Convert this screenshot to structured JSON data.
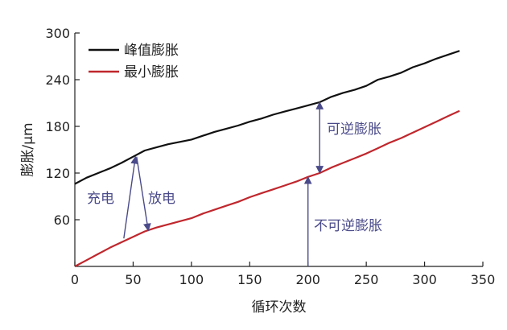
{
  "chart_data": {
    "type": "line",
    "xlabel": "循环次数",
    "ylabel": "膨胀/μm",
    "xlim": [
      0,
      350
    ],
    "ylim": [
      0,
      300
    ],
    "xticks": [
      0,
      50,
      100,
      150,
      200,
      250,
      300,
      350
    ],
    "yticks": [
      60,
      120,
      180,
      240,
      300
    ],
    "grid": false,
    "legend_position": "top-left",
    "series": [
      {
        "name": "峰值膨胀",
        "color": "#111111",
        "x": [
          0,
          10,
          20,
          30,
          40,
          50,
          60,
          70,
          80,
          90,
          100,
          110,
          120,
          130,
          140,
          150,
          160,
          170,
          180,
          190,
          200,
          210,
          220,
          230,
          240,
          250,
          260,
          270,
          280,
          290,
          300,
          310,
          320,
          330
        ],
        "y": [
          106,
          114,
          120,
          126,
          133,
          141,
          149,
          153,
          157,
          160,
          163,
          168,
          173,
          177,
          181,
          186,
          190,
          195,
          199,
          203,
          207,
          211,
          218,
          223,
          227,
          232,
          240,
          244,
          249,
          256,
          261,
          267,
          272,
          277
        ]
      },
      {
        "name": "最小膨胀",
        "color": "#c0272d",
        "x": [
          0,
          10,
          20,
          30,
          40,
          50,
          60,
          70,
          80,
          90,
          100,
          110,
          120,
          130,
          140,
          150,
          160,
          170,
          180,
          190,
          200,
          210,
          220,
          230,
          240,
          250,
          260,
          270,
          280,
          290,
          300,
          310,
          320,
          330
        ],
        "y": [
          0,
          8,
          16,
          24,
          31,
          38,
          45,
          50,
          54,
          58,
          62,
          68,
          73,
          78,
          83,
          89,
          94,
          99,
          104,
          109,
          115,
          120,
          127,
          133,
          139,
          145,
          152,
          159,
          165,
          172,
          179,
          186,
          193,
          200
        ]
      }
    ],
    "annotations": [
      {
        "text": "充电",
        "arrow_from": [
          42,
          36
        ],
        "arrow_to": [
          52,
          141
        ]
      },
      {
        "text": "放电",
        "arrow_from": [
          53,
          141
        ],
        "arrow_to": [
          63,
          46
        ]
      },
      {
        "text": "可逆膨胀",
        "arrow_from": [
          210,
          120
        ],
        "arrow_to": [
          210,
          211
        ]
      },
      {
        "text": "不可逆膨胀",
        "arrow_from": [
          200,
          0
        ],
        "arrow_to": [
          200,
          115
        ]
      }
    ]
  }
}
